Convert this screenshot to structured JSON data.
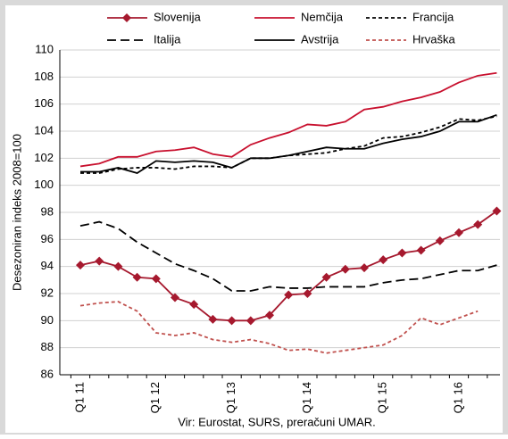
{
  "chart_data": {
    "type": "line",
    "y_label": "Desezoniran indeks 2008=100",
    "source": "Vir: Eurostat, SURS, preračuni UMAR.",
    "categories": [
      "Q1 11",
      null,
      null,
      null,
      "Q1 12",
      null,
      null,
      null,
      "Q1 13",
      null,
      null,
      null,
      "Q1 14",
      null,
      null,
      null,
      "Q1 15",
      null,
      null,
      null,
      "Q1 16",
      null,
      null
    ],
    "ylim": [
      86,
      110
    ],
    "yticks": [
      86,
      88,
      90,
      92,
      94,
      96,
      98,
      100,
      102,
      104,
      106,
      108,
      110
    ],
    "grid": true,
    "series": [
      {
        "name": "Slovenija",
        "color": "#a6192e",
        "style": "solid",
        "marker": "diamond",
        "values": [
          94.1,
          94.4,
          94.0,
          93.2,
          93.1,
          91.7,
          91.2,
          90.1,
          90.0,
          90.0,
          90.4,
          91.9,
          92.0,
          93.2,
          93.8,
          93.9,
          94.5,
          95.0,
          95.2,
          95.9,
          96.5,
          97.1,
          98.1
        ]
      },
      {
        "name": "Nemčija",
        "color": "#c8102e",
        "style": "solid",
        "values": [
          101.4,
          101.6,
          102.1,
          102.1,
          102.5,
          102.6,
          102.8,
          102.3,
          102.1,
          103.0,
          103.5,
          103.9,
          104.5,
          104.4,
          104.7,
          105.6,
          105.8,
          106.2,
          106.5,
          106.9,
          107.6,
          108.1,
          108.3
        ]
      },
      {
        "name": "Francija",
        "color": "#000000",
        "style": "dotted",
        "values": [
          100.9,
          100.9,
          101.2,
          101.3,
          101.3,
          101.2,
          101.4,
          101.4,
          101.3,
          102.0,
          102.0,
          102.2,
          102.3,
          102.4,
          102.7,
          102.9,
          103.5,
          103.6,
          103.9,
          104.3,
          104.9,
          104.8,
          105.1
        ]
      },
      {
        "name": "Italija",
        "color": "#000000",
        "style": "dashed",
        "values": [
          97.0,
          97.3,
          96.8,
          95.8,
          95.0,
          94.2,
          93.7,
          93.1,
          92.2,
          92.2,
          92.5,
          92.4,
          92.4,
          92.5,
          92.5,
          92.5,
          92.8,
          93.0,
          93.1,
          93.4,
          93.7,
          93.7,
          94.1
        ]
      },
      {
        "name": "Avstrija",
        "color": "#000000",
        "style": "solid",
        "values": [
          101.0,
          101.0,
          101.3,
          100.9,
          101.8,
          101.7,
          101.8,
          101.7,
          101.3,
          102.0,
          102.0,
          102.2,
          102.5,
          102.8,
          102.7,
          102.7,
          103.1,
          103.4,
          103.6,
          104.0,
          104.7,
          104.7,
          105.2
        ]
      },
      {
        "name": "Hrvaška",
        "color": "#c0504d",
        "style": "dotted",
        "values": [
          91.1,
          91.3,
          91.4,
          90.7,
          89.1,
          88.9,
          89.1,
          88.6,
          88.4,
          88.6,
          88.3,
          87.8,
          87.9,
          87.6,
          87.8,
          88.0,
          88.2,
          88.9,
          90.2,
          89.7,
          90.2,
          90.7,
          null
        ]
      }
    ]
  }
}
